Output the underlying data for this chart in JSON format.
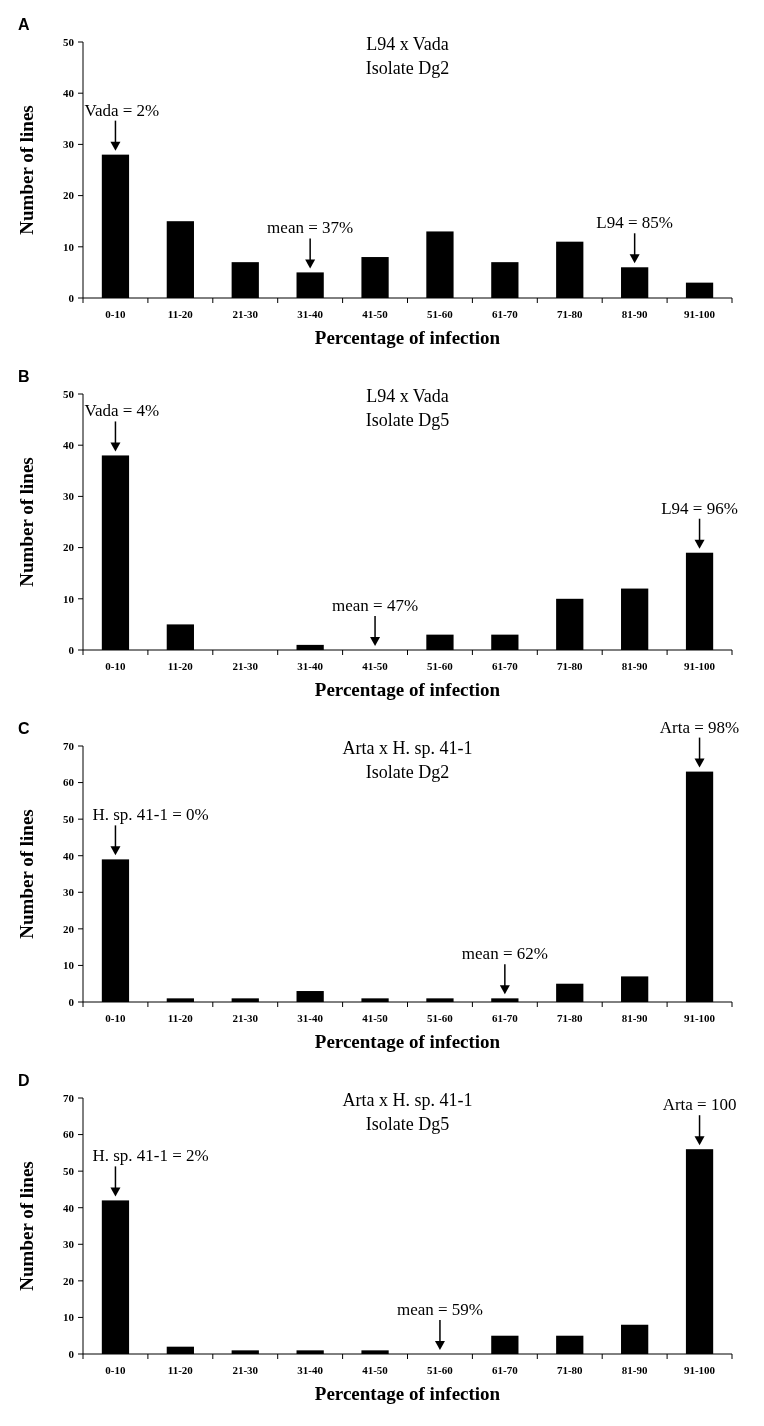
{
  "chart_data": [
    {
      "type": "bar",
      "title": "L94 x Vada",
      "subtitle": "Isolate Dg2",
      "xlabel": "Percentage of infection",
      "ylabel": "Number of lines",
      "categories": [
        "0-10",
        "11-20",
        "21-30",
        "31-40",
        "41-50",
        "51-60",
        "61-70",
        "71-80",
        "81-90",
        "91-100"
      ],
      "values": [
        28,
        15,
        7,
        5,
        8,
        13,
        7,
        11,
        6,
        3
      ],
      "color": "#000000",
      "ylim": [
        0,
        50
      ],
      "yticks": [
        0,
        10,
        20,
        30,
        40,
        50
      ],
      "annotations": [
        "A",
        {
          "text": "Vada = 2%",
          "x": "0-10",
          "y": 28
        },
        {
          "text": "mean = 37%",
          "x": "31-40",
          "y": 5
        },
        {
          "text": "L94 = 85%",
          "x": "81-90",
          "y": 6
        }
      ]
    },
    {
      "type": "bar",
      "title": "L94 x Vada",
      "subtitle": "Isolate Dg5",
      "xlabel": "Percentage of infection",
      "ylabel": "Number of lines",
      "categories": [
        "0-10",
        "11-20",
        "21-30",
        "31-40",
        "41-50",
        "51-60",
        "61-70",
        "71-80",
        "81-90",
        "91-100"
      ],
      "values": [
        38,
        5,
        0,
        1,
        0,
        3,
        3,
        10,
        12,
        19
      ],
      "color": "#000000",
      "ylim": [
        0,
        50
      ],
      "yticks": [
        0,
        10,
        20,
        30,
        40,
        50
      ],
      "annotations": [
        "B",
        {
          "text": "Vada = 4%",
          "x": "0-10",
          "y": 38
        },
        {
          "text": "mean = 47%",
          "x": "41-50",
          "y": 0
        },
        {
          "text": "L94 = 96%",
          "x": "91-100",
          "y": 19
        }
      ]
    },
    {
      "type": "bar",
      "title": "Arta x H. sp. 41-1",
      "subtitle": "Isolate Dg2",
      "xlabel": "Percentage of infection",
      "ylabel": "Number of lines",
      "categories": [
        "0-10",
        "11-20",
        "21-30",
        "31-40",
        "41-50",
        "51-60",
        "61-70",
        "71-80",
        "81-90",
        "91-100"
      ],
      "values": [
        39,
        1,
        1,
        3,
        1,
        1,
        1,
        5,
        7,
        63
      ],
      "color": "#000000",
      "ylim": [
        0,
        70
      ],
      "yticks": [
        0,
        10,
        20,
        30,
        40,
        50,
        60,
        70
      ],
      "annotations": [
        "C",
        {
          "text": "H. sp. 41-1 = 0%",
          "x": "0-10",
          "y": 39
        },
        {
          "text": "mean = 62%",
          "x": "61-70",
          "y": 1
        },
        {
          "text": "Arta = 98%",
          "x": "91-100",
          "y": 63
        }
      ]
    },
    {
      "type": "bar",
      "title": "Arta x H. sp. 41-1",
      "subtitle": "Isolate Dg5",
      "xlabel": "Percentage of infection",
      "ylabel": "Number of lines",
      "categories": [
        "0-10",
        "11-20",
        "21-30",
        "31-40",
        "41-50",
        "51-60",
        "61-70",
        "71-80",
        "81-90",
        "91-100"
      ],
      "values": [
        42,
        2,
        1,
        1,
        1,
        0,
        5,
        5,
        8,
        56
      ],
      "color": "#000000",
      "ylim": [
        0,
        70
      ],
      "yticks": [
        0,
        10,
        20,
        30,
        40,
        50,
        60,
        70
      ],
      "annotations": [
        "D",
        {
          "text": "H. sp. 41-1 = 2%",
          "x": "0-10",
          "y": 42
        },
        {
          "text": "mean = 59%",
          "x": "51-60",
          "y": 0
        },
        {
          "text": "Arta = 100",
          "x": "91-100",
          "y": 56
        }
      ]
    }
  ]
}
